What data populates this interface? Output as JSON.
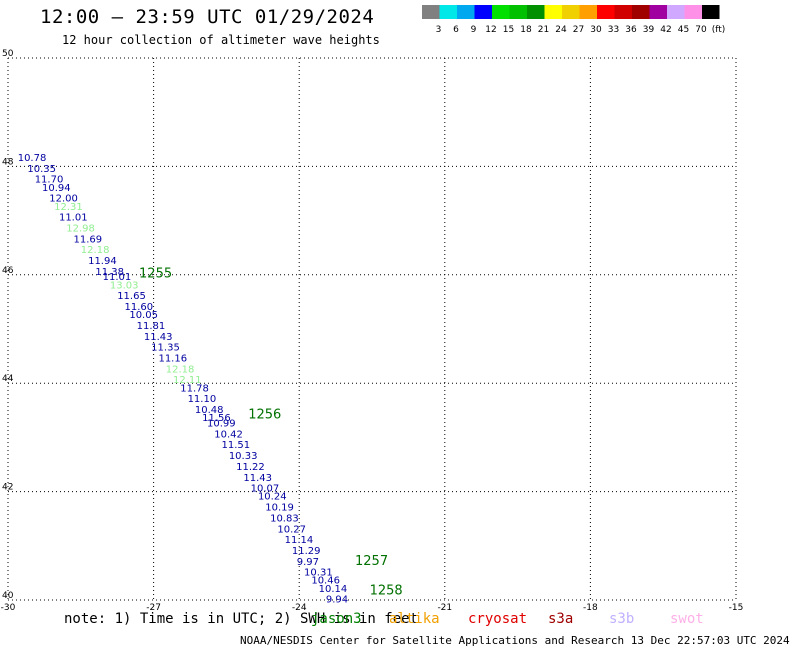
{
  "header": {
    "title": "12:00 — 23:59 UTC 01/29/2024",
    "subtitle": "12 hour collection of altimeter wave heights"
  },
  "colorbar": {
    "colors": [
      "#808080",
      "#00e8e8",
      "#00a8f0",
      "#0000ff",
      "#00e000",
      "#00c000",
      "#009000",
      "#ffff00",
      "#f0d000",
      "#ffa000",
      "#ff0000",
      "#d00000",
      "#a00000",
      "#a000a0",
      "#d0a8ff",
      "#ff90e8",
      "#000000"
    ],
    "labels": [
      "3",
      "6",
      "9",
      "12",
      "15",
      "18",
      "21",
      "24",
      "27",
      "30",
      "33",
      "36",
      "39",
      "42",
      "45",
      "70",
      "(ft)"
    ]
  },
  "chart_data": {
    "type": "scatter",
    "xlim": [
      -30,
      -15
    ],
    "ylim": [
      40,
      50
    ],
    "x_ticks": [
      "-30",
      "-27",
      "-24",
      "-21",
      "-18",
      "-15"
    ],
    "y_ticks": [
      "40",
      "42",
      "44",
      "46",
      "48",
      "50"
    ],
    "grid": true,
    "points": [
      {
        "lon": -29.8,
        "lat": 48.1,
        "label": "10.78",
        "color": "#0000a0"
      },
      {
        "lon": -29.6,
        "lat": 47.9,
        "label": "10.35",
        "color": "#0000a0"
      },
      {
        "lon": -29.45,
        "lat": 47.7,
        "label": "11.70",
        "color": "#0000a0"
      },
      {
        "lon": -29.3,
        "lat": 47.55,
        "label": "10.94",
        "color": "#0000a0"
      },
      {
        "lon": -29.15,
        "lat": 47.35,
        "label": "12.00",
        "color": "#0000a0"
      },
      {
        "lon": -29.05,
        "lat": 47.2,
        "label": "12.31",
        "color": "#90ee90"
      },
      {
        "lon": -28.95,
        "lat": 47.0,
        "label": "11.01",
        "color": "#0000a0"
      },
      {
        "lon": -28.8,
        "lat": 46.8,
        "label": "12.98",
        "color": "#90ee90"
      },
      {
        "lon": -28.65,
        "lat": 46.6,
        "label": "11.69",
        "color": "#0000a0"
      },
      {
        "lon": -28.5,
        "lat": 46.4,
        "label": "12.18",
        "color": "#90ee90"
      },
      {
        "lon": -28.35,
        "lat": 46.2,
        "label": "11.94",
        "color": "#0000a0"
      },
      {
        "lon": -28.2,
        "lat": 46.0,
        "label": "11.38",
        "color": "#0000a0"
      },
      {
        "lon": -28.05,
        "lat": 45.9,
        "label": "11.01",
        "color": "#0000a0"
      },
      {
        "lon": -27.9,
        "lat": 45.75,
        "label": "13.03",
        "color": "#90ee90"
      },
      {
        "lon": -27.75,
        "lat": 45.55,
        "label": "11.65",
        "color": "#0000a0"
      },
      {
        "lon": -27.6,
        "lat": 45.35,
        "label": "11.60",
        "color": "#0000a0"
      },
      {
        "lon": -27.5,
        "lat": 45.2,
        "label": "10.05",
        "color": "#0000a0"
      },
      {
        "lon": -27.35,
        "lat": 45.0,
        "label": "11.81",
        "color": "#0000a0"
      },
      {
        "lon": -27.2,
        "lat": 44.8,
        "label": "11.43",
        "color": "#0000a0"
      },
      {
        "lon": -27.05,
        "lat": 44.6,
        "label": "11.35",
        "color": "#0000a0"
      },
      {
        "lon": -26.9,
        "lat": 44.4,
        "label": "11.16",
        "color": "#0000a0"
      },
      {
        "lon": -26.75,
        "lat": 44.2,
        "label": "12.18",
        "color": "#90ee90"
      },
      {
        "lon": -26.6,
        "lat": 44.0,
        "label": "12.11",
        "color": "#90ee90"
      },
      {
        "lon": -26.45,
        "lat": 43.85,
        "label": "11.78",
        "color": "#0000a0"
      },
      {
        "lon": -26.3,
        "lat": 43.65,
        "label": "11.10",
        "color": "#0000a0"
      },
      {
        "lon": -26.15,
        "lat": 43.45,
        "label": "10.48",
        "color": "#0000a0"
      },
      {
        "lon": -26.0,
        "lat": 43.3,
        "label": "11.56",
        "color": "#0000a0"
      },
      {
        "lon": -25.9,
        "lat": 43.2,
        "label": "10.99",
        "color": "#0000a0"
      },
      {
        "lon": -25.75,
        "lat": 43.0,
        "label": "10.42",
        "color": "#0000a0"
      },
      {
        "lon": -25.6,
        "lat": 42.8,
        "label": "11.51",
        "color": "#0000a0"
      },
      {
        "lon": -25.45,
        "lat": 42.6,
        "label": "10.33",
        "color": "#0000a0"
      },
      {
        "lon": -25.3,
        "lat": 42.4,
        "label": "11.22",
        "color": "#0000a0"
      },
      {
        "lon": -25.15,
        "lat": 42.2,
        "label": "11.43",
        "color": "#0000a0"
      },
      {
        "lon": -25.0,
        "lat": 42.0,
        "label": "10.07",
        "color": "#0000a0"
      },
      {
        "lon": -24.85,
        "lat": 41.85,
        "label": "10.24",
        "color": "#0000a0"
      },
      {
        "lon": -24.7,
        "lat": 41.65,
        "label": "10.19",
        "color": "#0000a0"
      },
      {
        "lon": -24.6,
        "lat": 41.45,
        "label": "10.83",
        "color": "#0000a0"
      },
      {
        "lon": -24.45,
        "lat": 41.25,
        "label": "10.27",
        "color": "#0000a0"
      },
      {
        "lon": -24.3,
        "lat": 41.05,
        "label": "11.14",
        "color": "#0000a0"
      },
      {
        "lon": -24.15,
        "lat": 40.85,
        "label": "11.29",
        "color": "#0000a0"
      },
      {
        "lon": -24.05,
        "lat": 40.65,
        "label": "9.97",
        "color": "#0000a0"
      },
      {
        "lon": -23.9,
        "lat": 40.45,
        "label": "10.31",
        "color": "#0000a0"
      },
      {
        "lon": -23.75,
        "lat": 40.3,
        "label": "10.46",
        "color": "#0000a0"
      },
      {
        "lon": -23.6,
        "lat": 40.15,
        "label": "10.14",
        "color": "#0000a0"
      },
      {
        "lon": -23.45,
        "lat": 39.95,
        "label": "9.94",
        "color": "#0000a0"
      }
    ],
    "time_labels": [
      {
        "lon": -27.3,
        "lat": 45.95,
        "text": "1255"
      },
      {
        "lon": -25.05,
        "lat": 43.35,
        "text": "1256"
      },
      {
        "lon": -22.85,
        "lat": 40.65,
        "text": "1257"
      },
      {
        "lon": -22.55,
        "lat": 40.1,
        "text": "1258"
      }
    ],
    "time_label_color": "#007000"
  },
  "footer": {
    "note": "note: 1) Time is in UTC; 2) SWH is in feet",
    "sources": [
      {
        "name": "jason3",
        "color": "#008000"
      },
      {
        "name": "altika",
        "color": "#f0a000"
      },
      {
        "name": "cryosat",
        "color": "#e00000"
      },
      {
        "name": "s3a",
        "color": "#a00000"
      },
      {
        "name": "s3b",
        "color": "#c0b0ff"
      },
      {
        "name": "swot",
        "color": "#ffb0e8"
      }
    ],
    "credit": "NOAA/NESDIS Center for Satellite Applications and Research    13 Dec 22:57:03 UTC 2024"
  }
}
